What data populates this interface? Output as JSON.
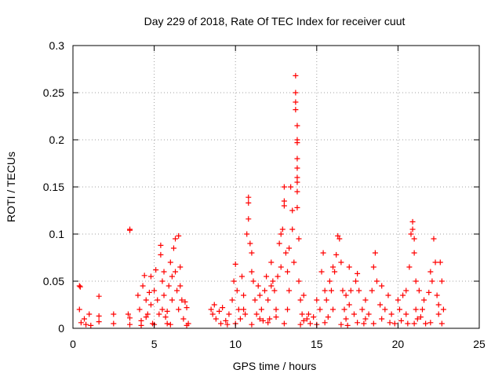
{
  "chart_data": {
    "type": "scatter",
    "title": "Day 229 of 2018, Rate Of TEC Index for receiver cuut",
    "xlabel": "GPS time / hours",
    "ylabel": "ROTI / TECUs",
    "xlim": [
      0,
      25
    ],
    "ylim": [
      0,
      0.3
    ],
    "x_ticks": [
      0,
      5,
      10,
      15,
      20,
      25
    ],
    "x_tick_labels": [
      "0",
      "5",
      "10",
      "15",
      "20",
      "25"
    ],
    "y_ticks": [
      0,
      0.05,
      0.1,
      0.15,
      0.2,
      0.25,
      0.3
    ],
    "y_tick_labels": [
      "0",
      "0.05",
      "0.1",
      "0.15",
      "0.2",
      "0.25",
      "0.3"
    ],
    "grid": true,
    "legend": "none",
    "marker": "+",
    "marker_color": "#ff0000",
    "series": [
      {
        "points": [
          [
            0.4,
            0.045
          ],
          [
            0.45,
            0.044
          ],
          [
            0.4,
            0.02
          ],
          [
            0.5,
            0.006
          ],
          [
            0.7,
            0.01
          ],
          [
            0.8,
            0.004
          ],
          [
            1.0,
            0.015
          ],
          [
            1.1,
            0.003
          ],
          [
            1.6,
            0.013
          ],
          [
            1.6,
            0.007
          ],
          [
            1.6,
            0.034
          ],
          [
            2.5,
            0.015
          ],
          [
            2.5,
            0.005
          ],
          [
            3.4,
            0.015
          ],
          [
            3.5,
            0.011
          ],
          [
            3.5,
            0.004
          ],
          [
            3.5,
            0.104
          ],
          [
            3.5,
            0.105
          ],
          [
            4.0,
            0.035
          ],
          [
            4.1,
            0.02
          ],
          [
            4.2,
            0.008
          ],
          [
            4.3,
            0.045
          ],
          [
            4.4,
            0.056
          ],
          [
            4.5,
            0.03
          ],
          [
            4.6,
            0.015
          ],
          [
            4.7,
            0.038
          ],
          [
            4.8,
            0.025
          ],
          [
            4.9,
            0.005
          ],
          [
            5.0,
            0.04
          ],
          [
            5.1,
            0.062
          ],
          [
            5.2,
            0.03
          ],
          [
            5.3,
            0.015
          ],
          [
            5.4,
            0.078
          ],
          [
            5.4,
            0.088
          ],
          [
            5.5,
            0.05
          ],
          [
            5.5,
            0.02
          ],
          [
            5.6,
            0.035
          ],
          [
            5.7,
            0.012
          ],
          [
            5.8,
            0.005
          ],
          [
            5.9,
            0.045
          ],
          [
            6.0,
            0.07
          ],
          [
            6.1,
            0.03
          ],
          [
            6.2,
            0.085
          ],
          [
            6.3,
            0.095
          ],
          [
            6.3,
            0.06
          ],
          [
            6.4,
            0.04
          ],
          [
            6.5,
            0.02
          ],
          [
            6.5,
            0.098
          ],
          [
            6.6,
            0.065
          ],
          [
            6.7,
            0.03
          ],
          [
            6.8,
            0.01
          ],
          [
            6.9,
            0.028
          ],
          [
            7.0,
            0.022
          ],
          [
            7.1,
            0.005
          ],
          [
            7.0,
            0.003
          ],
          [
            4.2,
            0.003
          ],
          [
            5.0,
            0.004
          ],
          [
            6.0,
            0.004
          ],
          [
            4.5,
            0.012
          ],
          [
            5.8,
            0.018
          ],
          [
            6.6,
            0.045
          ],
          [
            4.8,
            0.055
          ],
          [
            5.6,
            0.06
          ],
          [
            6.1,
            0.055
          ],
          [
            8.5,
            0.02
          ],
          [
            8.6,
            0.015
          ],
          [
            8.7,
            0.025
          ],
          [
            8.8,
            0.01
          ],
          [
            9.0,
            0.018
          ],
          [
            9.1,
            0.005
          ],
          [
            9.2,
            0.022
          ],
          [
            9.4,
            0.008
          ],
          [
            9.6,
            0.015
          ],
          [
            9.8,
            0.03
          ],
          [
            9.9,
            0.05
          ],
          [
            10.0,
            0.068
          ],
          [
            10.1,
            0.04
          ],
          [
            10.2,
            0.02
          ],
          [
            10.3,
            0.01
          ],
          [
            10.4,
            0.055
          ],
          [
            10.5,
            0.035
          ],
          [
            10.6,
            0.015
          ],
          [
            10.7,
            0.1
          ],
          [
            10.8,
            0.139
          ],
          [
            10.8,
            0.133
          ],
          [
            10.8,
            0.116
          ],
          [
            10.9,
            0.09
          ],
          [
            11.0,
            0.08
          ],
          [
            11.0,
            0.06
          ],
          [
            11.1,
            0.05
          ],
          [
            11.2,
            0.03
          ],
          [
            11.3,
            0.015
          ],
          [
            11.4,
            0.045
          ],
          [
            11.5,
            0.035
          ],
          [
            11.6,
            0.02
          ],
          [
            11.7,
            0.008
          ],
          [
            11.8,
            0.04
          ],
          [
            11.9,
            0.055
          ],
          [
            12.0,
            0.03
          ],
          [
            12.1,
            0.01
          ],
          [
            12.2,
            0.07
          ],
          [
            12.3,
            0.05
          ],
          [
            12.4,
            0.04
          ],
          [
            12.5,
            0.02
          ],
          [
            12.6,
            0.055
          ],
          [
            12.7,
            0.09
          ],
          [
            12.8,
            0.1
          ],
          [
            12.9,
            0.105
          ],
          [
            13.0,
            0.15
          ],
          [
            13.0,
            0.135
          ],
          [
            13.0,
            0.13
          ],
          [
            13.1,
            0.08
          ],
          [
            13.2,
            0.06
          ],
          [
            13.3,
            0.04
          ],
          [
            13.4,
            0.15
          ],
          [
            13.5,
            0.105
          ],
          [
            13.5,
            0.125
          ],
          [
            13.6,
            0.07
          ],
          [
            13.7,
            0.268
          ],
          [
            13.7,
            0.25
          ],
          [
            13.7,
            0.24
          ],
          [
            13.7,
            0.232
          ],
          [
            13.8,
            0.215
          ],
          [
            13.8,
            0.2
          ],
          [
            13.8,
            0.197
          ],
          [
            13.8,
            0.18
          ],
          [
            13.8,
            0.17
          ],
          [
            13.8,
            0.16
          ],
          [
            13.8,
            0.155
          ],
          [
            13.8,
            0.145
          ],
          [
            13.8,
            0.128
          ],
          [
            13.9,
            0.095
          ],
          [
            13.9,
            0.05
          ],
          [
            14.0,
            0.03
          ],
          [
            14.1,
            0.015
          ],
          [
            14.2,
            0.008
          ],
          [
            14.4,
            0.01
          ],
          [
            14.6,
            0.005
          ],
          [
            14.8,
            0.012
          ],
          [
            15.0,
            0.004
          ],
          [
            15.2,
            0.02
          ],
          [
            15.3,
            0.06
          ],
          [
            15.4,
            0.08
          ],
          [
            15.5,
            0.04
          ],
          [
            15.6,
            0.03
          ],
          [
            15.7,
            0.012
          ],
          [
            15.8,
            0.05
          ],
          [
            15.9,
            0.04
          ],
          [
            16.0,
            0.065
          ],
          [
            16.1,
            0.06
          ],
          [
            16.2,
            0.078
          ],
          [
            16.3,
            0.098
          ],
          [
            16.4,
            0.095
          ],
          [
            16.5,
            0.07
          ],
          [
            16.6,
            0.04
          ],
          [
            16.7,
            0.02
          ],
          [
            16.8,
            0.01
          ],
          [
            16.9,
            0.003
          ],
          [
            17.0,
            0.065
          ],
          [
            17.1,
            0.04
          ],
          [
            17.3,
            0.015
          ],
          [
            17.4,
            0.05
          ],
          [
            17.5,
            0.058
          ],
          [
            17.6,
            0.04
          ],
          [
            17.8,
            0.02
          ],
          [
            17.9,
            0.005
          ],
          [
            18.0,
            0.03
          ],
          [
            18.2,
            0.015
          ],
          [
            18.4,
            0.04
          ],
          [
            18.5,
            0.065
          ],
          [
            18.6,
            0.08
          ],
          [
            18.7,
            0.05
          ],
          [
            18.9,
            0.025
          ],
          [
            19.0,
            0.01
          ],
          [
            19.2,
            0.02
          ],
          [
            19.4,
            0.035
          ],
          [
            19.6,
            0.015
          ],
          [
            19.8,
            0.005
          ],
          [
            20.0,
            0.03
          ],
          [
            20.1,
            0.02
          ],
          [
            20.2,
            0.008
          ],
          [
            20.5,
            0.015
          ],
          [
            20.6,
            0.005
          ],
          [
            20.7,
            0.065
          ],
          [
            20.8,
            0.1
          ],
          [
            20.9,
            0.113
          ],
          [
            20.9,
            0.105
          ],
          [
            21.0,
            0.095
          ],
          [
            21.0,
            0.08
          ],
          [
            21.1,
            0.05
          ],
          [
            21.1,
            0.02
          ],
          [
            21.2,
            0.01
          ],
          [
            21.3,
            0.04
          ],
          [
            21.4,
            0.012
          ],
          [
            21.6,
            0.03
          ],
          [
            21.7,
            0.005
          ],
          [
            21.9,
            0.038
          ],
          [
            22.0,
            0.06
          ],
          [
            22.1,
            0.05
          ],
          [
            22.2,
            0.095
          ],
          [
            22.3,
            0.07
          ],
          [
            22.4,
            0.035
          ],
          [
            22.5,
            0.015
          ],
          [
            22.6,
            0.07
          ],
          [
            22.7,
            0.05
          ],
          [
            22.8,
            0.02
          ],
          [
            22.7,
            0.005
          ],
          [
            10.0,
            0.005
          ],
          [
            11.0,
            0.004
          ],
          [
            12.0,
            0.006
          ],
          [
            13.0,
            0.005
          ],
          [
            14.0,
            0.004
          ],
          [
            15.5,
            0.006
          ],
          [
            16.5,
            0.004
          ],
          [
            17.5,
            0.006
          ],
          [
            18.5,
            0.005
          ],
          [
            19.5,
            0.006
          ],
          [
            21.0,
            0.005
          ],
          [
            22.0,
            0.006
          ],
          [
            9.5,
            0.004
          ],
          [
            10.5,
            0.02
          ],
          [
            11.5,
            0.01
          ],
          [
            12.5,
            0.012
          ],
          [
            13.2,
            0.02
          ],
          [
            14.5,
            0.015
          ],
          [
            15.0,
            0.03
          ],
          [
            16.0,
            0.02
          ],
          [
            17.0,
            0.025
          ],
          [
            18.0,
            0.01
          ],
          [
            20.5,
            0.04
          ],
          [
            21.5,
            0.02
          ],
          [
            22.5,
            0.025
          ],
          [
            12.2,
            0.045
          ],
          [
            12.8,
            0.065
          ],
          [
            13.3,
            0.085
          ],
          [
            14.2,
            0.035
          ],
          [
            16.8,
            0.035
          ],
          [
            19.0,
            0.045
          ],
          [
            20.3,
            0.035
          ]
        ]
      }
    ]
  }
}
